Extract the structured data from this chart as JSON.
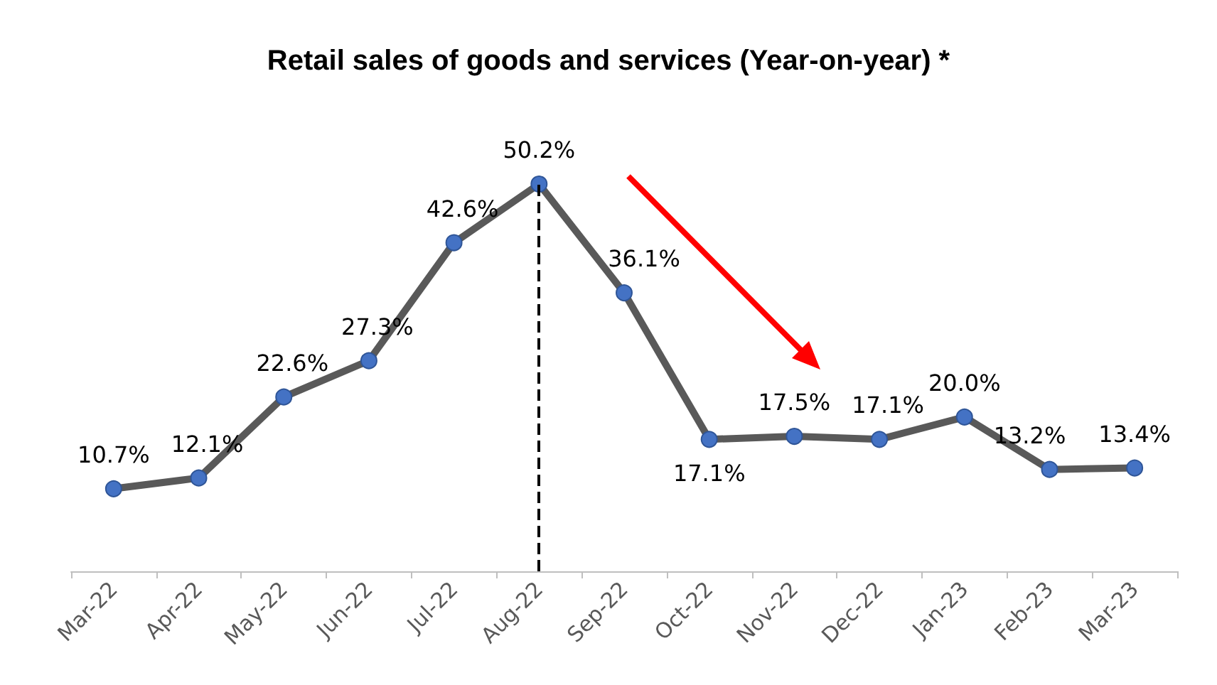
{
  "chart_data": {
    "type": "line",
    "title": "Retail sales of goods and services (Year-on-year) *",
    "categories": [
      "Mar-22",
      "Apr-22",
      "May-22",
      "Jun-22",
      "Jul-22",
      "Aug-22",
      "Sep-22",
      "Oct-22",
      "Nov-22",
      "Dec-22",
      "Jan-23",
      "Feb-23",
      "Mar-23"
    ],
    "series": [
      {
        "color": "#595959",
        "values": [
          10.7,
          12.1,
          22.6,
          27.3,
          42.6,
          50.2,
          36.1,
          17.1,
          17.5,
          17.1,
          20.0,
          13.2,
          13.4
        ],
        "value_labels": [
          "10.7%",
          "12.1%",
          "22.6%",
          "27.3%",
          "42.6%",
          "50.2%",
          "36.1%",
          "17.1%",
          "17.5%",
          "17.1%",
          "20.0%",
          "13.2%",
          "13.4%"
        ]
      }
    ],
    "ref_lines": [
      {
        "axis": "x",
        "value": "Aug-22",
        "color": "#000000",
        "line_style": "dashed"
      }
    ],
    "marker": "circle",
    "line_style": "solid",
    "grid": false
  }
}
